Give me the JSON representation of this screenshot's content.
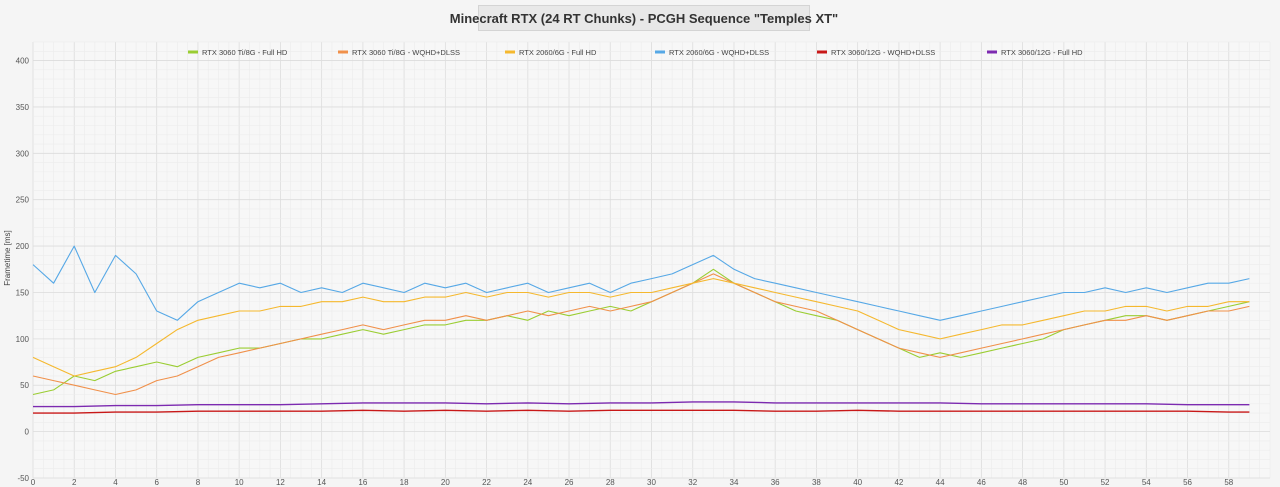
{
  "chart_data": {
    "type": "line",
    "title": "Minecraft RTX (24 RT Chunks) - PCGH Sequence \"Temples XT\"",
    "xlabel": "",
    "ylabel": "Frametime [ms]",
    "xlim": [
      0,
      60
    ],
    "ylim": [
      -50,
      420
    ],
    "x_ticks": [
      0,
      2,
      4,
      6,
      8,
      10,
      12,
      14,
      16,
      18,
      20,
      22,
      24,
      26,
      28,
      30,
      32,
      34,
      36,
      38,
      40,
      42,
      44,
      46,
      48,
      50,
      52,
      54,
      56,
      58
    ],
    "y_ticks": [
      -50,
      0,
      50,
      100,
      150,
      200,
      250,
      300,
      350,
      400
    ],
    "grid": true,
    "legend_position": "top",
    "series": [
      {
        "name": "RTX 3060 Ti/8G - Full HD",
        "color": "#9acd32",
        "x": [
          0,
          1,
          2,
          3,
          4,
          5,
          6,
          7,
          8,
          9,
          10,
          11,
          12,
          13,
          14,
          15,
          16,
          17,
          18,
          19,
          20,
          21,
          22,
          23,
          24,
          25,
          26,
          27,
          28,
          29,
          30,
          31,
          32,
          33,
          34,
          35,
          36,
          37,
          38,
          39,
          40,
          41,
          42,
          43,
          44,
          45,
          46,
          47,
          48,
          49,
          50,
          51,
          52,
          53,
          54,
          55,
          56,
          57,
          58,
          59
        ],
        "values": [
          40,
          45,
          60,
          55,
          65,
          70,
          75,
          70,
          80,
          85,
          90,
          90,
          95,
          100,
          100,
          105,
          110,
          105,
          110,
          115,
          115,
          120,
          120,
          125,
          120,
          130,
          125,
          130,
          135,
          130,
          140,
          150,
          160,
          175,
          160,
          150,
          140,
          130,
          125,
          120,
          110,
          100,
          90,
          80,
          85,
          80,
          85,
          90,
          95,
          100,
          110,
          115,
          120,
          125,
          125,
          120,
          125,
          130,
          135,
          140
        ]
      },
      {
        "name": "RTX 3060 Ti/8G - WQHD+DLSS",
        "color": "#f0904a",
        "x": [
          0,
          1,
          2,
          3,
          4,
          5,
          6,
          7,
          8,
          9,
          10,
          11,
          12,
          13,
          14,
          15,
          16,
          17,
          18,
          19,
          20,
          21,
          22,
          23,
          24,
          25,
          26,
          27,
          28,
          29,
          30,
          31,
          32,
          33,
          34,
          35,
          36,
          37,
          38,
          39,
          40,
          41,
          42,
          43,
          44,
          45,
          46,
          47,
          48,
          49,
          50,
          51,
          52,
          53,
          54,
          55,
          56,
          57,
          58,
          59
        ],
        "values": [
          60,
          55,
          50,
          45,
          40,
          45,
          55,
          60,
          70,
          80,
          85,
          90,
          95,
          100,
          105,
          110,
          115,
          110,
          115,
          120,
          120,
          125,
          120,
          125,
          130,
          125,
          130,
          135,
          130,
          135,
          140,
          150,
          160,
          170,
          160,
          150,
          140,
          135,
          130,
          120,
          110,
          100,
          90,
          85,
          80,
          85,
          90,
          95,
          100,
          105,
          110,
          115,
          120,
          120,
          125,
          120,
          125,
          130,
          130,
          135
        ]
      },
      {
        "name": "RTX 2060/6G - Full HD",
        "color": "#f5b82e",
        "x": [
          0,
          1,
          2,
          3,
          4,
          5,
          6,
          7,
          8,
          9,
          10,
          11,
          12,
          13,
          14,
          15,
          16,
          17,
          18,
          19,
          20,
          21,
          22,
          23,
          24,
          25,
          26,
          27,
          28,
          29,
          30,
          31,
          32,
          33,
          34,
          35,
          36,
          37,
          38,
          39,
          40,
          41,
          42,
          43,
          44,
          45,
          46,
          47,
          48,
          49,
          50,
          51,
          52,
          53,
          54,
          55,
          56,
          57,
          58,
          59
        ],
        "values": [
          80,
          70,
          60,
          65,
          70,
          80,
          95,
          110,
          120,
          125,
          130,
          130,
          135,
          135,
          140,
          140,
          145,
          140,
          140,
          145,
          145,
          150,
          145,
          150,
          150,
          145,
          150,
          150,
          145,
          150,
          150,
          155,
          160,
          165,
          160,
          155,
          150,
          145,
          140,
          135,
          130,
          120,
          110,
          105,
          100,
          105,
          110,
          115,
          115,
          120,
          125,
          130,
          130,
          135,
          135,
          130,
          135,
          135,
          140,
          140
        ]
      },
      {
        "name": "RTX 2060/6G - WQHD+DLSS",
        "color": "#56a8e6",
        "x": [
          0,
          1,
          2,
          3,
          4,
          5,
          6,
          7,
          8,
          9,
          10,
          11,
          12,
          13,
          14,
          15,
          16,
          17,
          18,
          19,
          20,
          21,
          22,
          23,
          24,
          25,
          26,
          27,
          28,
          29,
          30,
          31,
          32,
          33,
          34,
          35,
          36,
          37,
          38,
          39,
          40,
          41,
          42,
          43,
          44,
          45,
          46,
          47,
          48,
          49,
          50,
          51,
          52,
          53,
          54,
          55,
          56,
          57,
          58,
          59
        ],
        "values": [
          180,
          160,
          200,
          150,
          190,
          170,
          130,
          120,
          140,
          150,
          160,
          155,
          160,
          150,
          155,
          150,
          160,
          155,
          150,
          160,
          155,
          160,
          150,
          155,
          160,
          150,
          155,
          160,
          150,
          160,
          165,
          170,
          180,
          190,
          175,
          165,
          160,
          155,
          150,
          145,
          140,
          135,
          130,
          125,
          120,
          125,
          130,
          135,
          140,
          145,
          150,
          150,
          155,
          150,
          155,
          150,
          155,
          160,
          160,
          165
        ]
      },
      {
        "name": "RTX 3060/12G - WQHD+DLSS",
        "color": "#c81818",
        "x": [
          0,
          2,
          4,
          6,
          8,
          10,
          12,
          14,
          16,
          18,
          20,
          22,
          24,
          26,
          28,
          30,
          32,
          34,
          36,
          38,
          40,
          42,
          44,
          46,
          48,
          50,
          52,
          54,
          56,
          58,
          59
        ],
        "values": [
          20,
          20,
          21,
          21,
          22,
          22,
          22,
          22,
          23,
          22,
          23,
          22,
          23,
          22,
          23,
          23,
          23,
          23,
          22,
          22,
          23,
          22,
          22,
          22,
          22,
          22,
          22,
          22,
          22,
          21,
          21
        ]
      },
      {
        "name": "RTX 3060/12G - Full HD",
        "color": "#7c2ab0",
        "x": [
          0,
          2,
          4,
          6,
          8,
          10,
          12,
          14,
          16,
          18,
          20,
          22,
          24,
          26,
          28,
          30,
          32,
          34,
          36,
          38,
          40,
          42,
          44,
          46,
          48,
          50,
          52,
          54,
          56,
          58,
          59
        ],
        "values": [
          27,
          27,
          28,
          28,
          29,
          29,
          29,
          30,
          31,
          31,
          31,
          30,
          31,
          30,
          31,
          31,
          32,
          32,
          31,
          31,
          31,
          31,
          31,
          30,
          30,
          30,
          30,
          30,
          29,
          29,
          29
        ]
      }
    ]
  }
}
